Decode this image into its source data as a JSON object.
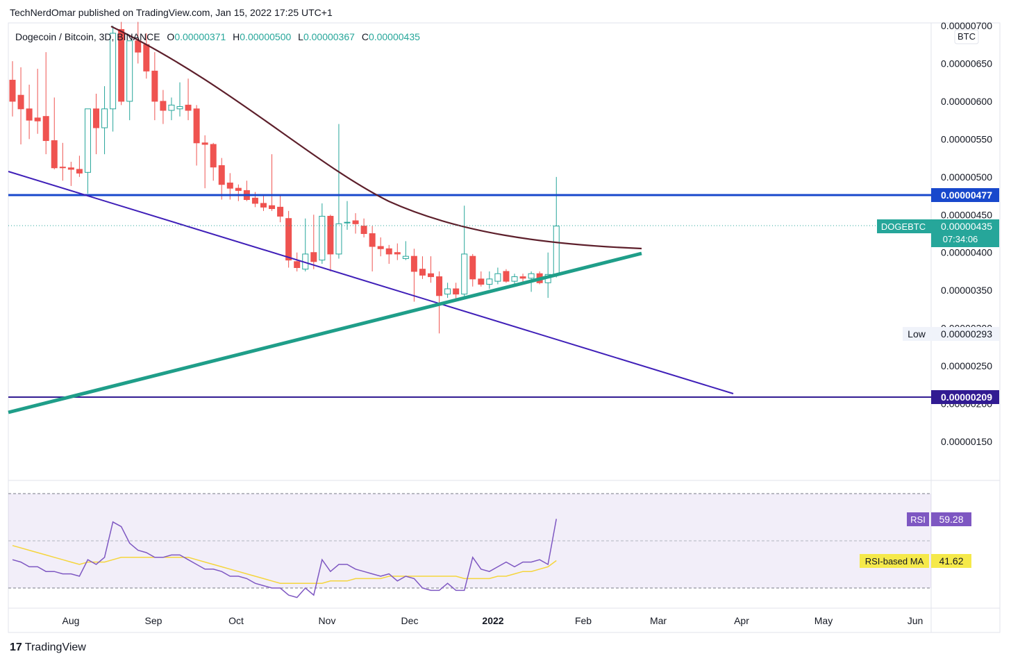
{
  "header": {
    "publisher_line": "TechNerdOmar published on TradingView.com, Jan 15, 2022 17:25 UTC+1"
  },
  "legend": {
    "symbol": "Dogecoin / Bitcoin, 3D, BINANCE",
    "o_label": "O",
    "o_value": "0.00000371",
    "h_label": "H",
    "h_value": "0.00000500",
    "l_label": "L",
    "l_value": "0.00000367",
    "c_label": "C",
    "c_value": "0.00000435"
  },
  "price_axis": {
    "currency": "BTC",
    "ticks": [
      "0.00000700",
      "0.00000650",
      "0.00000600",
      "0.00000550",
      "0.00000500",
      "0.00000450",
      "0.00000400",
      "0.00000350",
      "0.00000300",
      "0.00000250",
      "0.00000200",
      "0.00000150"
    ],
    "resistance_label": "0.00000477",
    "current_symbol": "DOGEBTC",
    "current_label": "0.00000435",
    "countdown": "07:34:06",
    "low_title": "Low",
    "low_label": "0.00000293",
    "support_label": "0.00000209"
  },
  "rsi_panel": {
    "rsi_title": "RSI",
    "rsi_value": "59.28",
    "ma_title": "RSI-based MA",
    "ma_value": "41.62"
  },
  "time_axis": [
    "Aug",
    "Sep",
    "Oct",
    "Nov",
    "Dec",
    "2022",
    "Feb",
    "Mar",
    "Apr",
    "May",
    "Jun"
  ],
  "footer": {
    "brand": "TradingView",
    "logo_mark": "17"
  },
  "colors": {
    "up": "#26a69a",
    "down": "#ef5350",
    "resistance": "#1848cc",
    "support": "#311b92",
    "downtrend": "#3f1fb8",
    "uptrend": "#1f9e89",
    "curve": "#5d1f2b",
    "rsi": "#7e57c2",
    "rsi_ma": "#f5d53c"
  },
  "chart_data": {
    "type": "candlestick",
    "timeframe": "3D",
    "ylim": [
      1.3e-06,
      7e-06
    ],
    "y_scale": "linear",
    "candles": [
      {
        "o": 6.28e-06,
        "h": 6.53e-06,
        "l": 5.8e-06,
        "c": 6e-06
      },
      {
        "o": 6.08e-06,
        "h": 6.45e-06,
        "l": 5.43e-06,
        "c": 5.9e-06
      },
      {
        "o": 5.9e-06,
        "h": 6.22e-06,
        "l": 5.5e-06,
        "c": 5.75e-06
      },
      {
        "o": 5.78e-06,
        "h": 6.43e-06,
        "l": 5.57e-06,
        "c": 5.74e-06
      },
      {
        "o": 5.8e-06,
        "h": 6.65e-06,
        "l": 5.3e-06,
        "c": 5.48e-06
      },
      {
        "o": 5.48e-06,
        "h": 6.05e-06,
        "l": 5.1e-06,
        "c": 5.12e-06
      },
      {
        "o": 5.13e-06,
        "h": 5.45e-06,
        "l": 4.95e-06,
        "c": 5.12e-06
      },
      {
        "o": 5.12e-06,
        "h": 5.2e-06,
        "l": 4.88e-06,
        "c": 5.1e-06
      },
      {
        "o": 5.1e-06,
        "h": 5.28e-06,
        "l": 5e-06,
        "c": 5.05e-06
      },
      {
        "o": 5.06e-06,
        "h": 5.9e-06,
        "l": 4.78e-06,
        "c": 5.9e-06
      },
      {
        "o": 5.9e-06,
        "h": 6.1e-06,
        "l": 5.3e-06,
        "c": 5.65e-06
      },
      {
        "o": 5.65e-06,
        "h": 6.2e-06,
        "l": 5.3e-06,
        "c": 5.9e-06
      },
      {
        "o": 5.9e-06,
        "h": 7e-06,
        "l": 5.6e-06,
        "c": 6.9e-06
      },
      {
        "o": 6.95e-06,
        "h": 7.05e-06,
        "l": 5.95e-06,
        "c": 6e-06
      },
      {
        "o": 6e-06,
        "h": 6.8e-06,
        "l": 5.75e-06,
        "c": 6.8e-06
      },
      {
        "o": 6.8e-06,
        "h": 7.05e-06,
        "l": 6.5e-06,
        "c": 6.65e-06
      },
      {
        "o": 6.75e-06,
        "h": 6.9e-06,
        "l": 6.3e-06,
        "c": 6.4e-06
      },
      {
        "o": 6.4e-06,
        "h": 6.65e-06,
        "l": 5.75e-06,
        "c": 6e-06
      },
      {
        "o": 6e-06,
        "h": 6.15e-06,
        "l": 5.7e-06,
        "c": 5.88e-06
      },
      {
        "o": 5.88e-06,
        "h": 6.05e-06,
        "l": 5.75e-06,
        "c": 5.95e-06
      },
      {
        "o": 5.9e-06,
        "h": 6.25e-06,
        "l": 5.8e-06,
        "c": 5.93e-06
      },
      {
        "o": 5.95e-06,
        "h": 6.3e-06,
        "l": 5.75e-06,
        "c": 5.88e-06
      },
      {
        "o": 5.9e-06,
        "h": 5.95e-06,
        "l": 5.15e-06,
        "c": 5.45e-06
      },
      {
        "o": 5.45e-06,
        "h": 5.55e-06,
        "l": 4.85e-06,
        "c": 5.43e-06
      },
      {
        "o": 5.43e-06,
        "h": 5.45e-06,
        "l": 4.95e-06,
        "c": 5.13e-06
      },
      {
        "o": 5.15e-06,
        "h": 5.25e-06,
        "l": 4.7e-06,
        "c": 4.9e-06
      },
      {
        "o": 4.92e-06,
        "h": 5.05e-06,
        "l": 4.7e-06,
        "c": 4.85e-06
      },
      {
        "o": 4.85e-06,
        "h": 4.9e-06,
        "l": 4.68e-06,
        "c": 4.82e-06
      },
      {
        "o": 4.82e-06,
        "h": 4.95e-06,
        "l": 4.68e-06,
        "c": 4.7e-06
      },
      {
        "o": 4.72e-06,
        "h": 4.8e-06,
        "l": 4.6e-06,
        "c": 4.65e-06
      },
      {
        "o": 4.65e-06,
        "h": 4.75e-06,
        "l": 4.55e-06,
        "c": 4.6e-06
      },
      {
        "o": 4.62e-06,
        "h": 5.3e-06,
        "l": 4.55e-06,
        "c": 4.58e-06
      },
      {
        "o": 4.6e-06,
        "h": 4.75e-06,
        "l": 4.4e-06,
        "c": 4.48e-06
      },
      {
        "o": 4.45e-06,
        "h": 4.55e-06,
        "l": 3.8e-06,
        "c": 3.9e-06
      },
      {
        "o": 3.88e-06,
        "h": 4e-06,
        "l": 3.75e-06,
        "c": 3.8e-06
      },
      {
        "o": 3.78e-06,
        "h": 4.45e-06,
        "l": 3.75e-06,
        "c": 3.98e-06
      },
      {
        "o": 4e-06,
        "h": 4.5e-06,
        "l": 3.78e-06,
        "c": 3.88e-06
      },
      {
        "o": 3.9e-06,
        "h": 4.65e-06,
        "l": 3.85e-06,
        "c": 4.48e-06
      },
      {
        "o": 4.48e-06,
        "h": 4.5e-06,
        "l": 3.75e-06,
        "c": 3.98e-06
      },
      {
        "o": 3.98e-06,
        "h": 5.7e-06,
        "l": 3.92e-06,
        "c": 4.38e-06
      },
      {
        "o": 4.4e-06,
        "h": 4.68e-06,
        "l": 4.3e-06,
        "c": 4.4e-06
      },
      {
        "o": 4.42e-06,
        "h": 4.52e-06,
        "l": 4.25e-06,
        "c": 4.38e-06
      },
      {
        "o": 4.35e-06,
        "h": 4.45e-06,
        "l": 4.2e-06,
        "c": 4.25e-06
      },
      {
        "o": 4.25e-06,
        "h": 4.35e-06,
        "l": 3.75e-06,
        "c": 4.08e-06
      },
      {
        "o": 4.08e-06,
        "h": 4.2e-06,
        "l": 3.95e-06,
        "c": 4.05e-06
      },
      {
        "o": 4.05e-06,
        "h": 4.1e-06,
        "l": 3.85e-06,
        "c": 3.98e-06
      },
      {
        "o": 4e-06,
        "h": 4.12e-06,
        "l": 3.9e-06,
        "c": 3.98e-06
      },
      {
        "o": 3.92e-06,
        "h": 4.15e-06,
        "l": 3.9e-06,
        "c": 3.95e-06
      },
      {
        "o": 3.95e-06,
        "h": 4.05e-06,
        "l": 3.35e-06,
        "c": 3.75e-06
      },
      {
        "o": 3.78e-06,
        "h": 3.95e-06,
        "l": 3.65e-06,
        "c": 3.7e-06
      },
      {
        "o": 3.72e-06,
        "h": 3.95e-06,
        "l": 3.6e-06,
        "c": 3.68e-06
      },
      {
        "o": 3.68e-06,
        "h": 3.75e-06,
        "l": 2.93e-06,
        "c": 3.43e-06
      },
      {
        "o": 3.45e-06,
        "h": 3.6e-06,
        "l": 3.4e-06,
        "c": 3.52e-06
      },
      {
        "o": 3.52e-06,
        "h": 3.6e-06,
        "l": 3.35e-06,
        "c": 3.45e-06
      },
      {
        "o": 3.45e-06,
        "h": 4.62e-06,
        "l": 3.4e-06,
        "c": 3.98e-06
      },
      {
        "o": 3.95e-06,
        "h": 3.98e-06,
        "l": 3.55e-06,
        "c": 3.65e-06
      },
      {
        "o": 3.65e-06,
        "h": 3.75e-06,
        "l": 3.55e-06,
        "c": 3.58e-06
      },
      {
        "o": 3.58e-06,
        "h": 3.75e-06,
        "l": 3.52e-06,
        "c": 3.65e-06
      },
      {
        "o": 3.62e-06,
        "h": 3.8e-06,
        "l": 3.58e-06,
        "c": 3.72e-06
      },
      {
        "o": 3.75e-06,
        "h": 3.78e-06,
        "l": 3.6e-06,
        "c": 3.62e-06
      },
      {
        "o": 3.62e-06,
        "h": 3.72e-06,
        "l": 3.58e-06,
        "c": 3.68e-06
      },
      {
        "o": 3.68e-06,
        "h": 3.72e-06,
        "l": 3.58e-06,
        "c": 3.66e-06
      },
      {
        "o": 3.66e-06,
        "h": 3.75e-06,
        "l": 3.48e-06,
        "c": 3.72e-06
      },
      {
        "o": 3.72e-06,
        "h": 3.75e-06,
        "l": 3.58e-06,
        "c": 3.6e-06
      },
      {
        "o": 3.6e-06,
        "h": 4e-06,
        "l": 3.4e-06,
        "c": 3.71e-06
      },
      {
        "o": 3.71e-06,
        "h": 5e-06,
        "l": 3.67e-06,
        "c": 4.35e-06
      }
    ],
    "rsi": {
      "ylim": [
        0,
        100
      ],
      "bands": [
        30,
        50,
        70
      ],
      "rsi_values": [
        42,
        41,
        39,
        39,
        37,
        37,
        36,
        36,
        35,
        42,
        40,
        43,
        58,
        56,
        49,
        46,
        45,
        43,
        43,
        44,
        44,
        42,
        40,
        38,
        38,
        37,
        35,
        35,
        34,
        32,
        31,
        30,
        30,
        27,
        26,
        30,
        27,
        42,
        37,
        40,
        40,
        38,
        37,
        36,
        35,
        36,
        33,
        35,
        34,
        30,
        29,
        29,
        32,
        29,
        29,
        43,
        38,
        37,
        39,
        41,
        39,
        41,
        41,
        42,
        40,
        59.28
      ],
      "rsi_ma_values": [
        48,
        47,
        46,
        45,
        44,
        43,
        42,
        41,
        40,
        41,
        41,
        41,
        42,
        43,
        43,
        43,
        43,
        43,
        43,
        43,
        43,
        43,
        42,
        41,
        40,
        39,
        38,
        37,
        36,
        35,
        34,
        33,
        32,
        32,
        32,
        32,
        32,
        32,
        33,
        33,
        33,
        34,
        34,
        34,
        34,
        35,
        35,
        35,
        35,
        35,
        35,
        35,
        35,
        35,
        34,
        34,
        34,
        34,
        35,
        35,
        36,
        37,
        37,
        38,
        39,
        41.62
      ]
    }
  }
}
